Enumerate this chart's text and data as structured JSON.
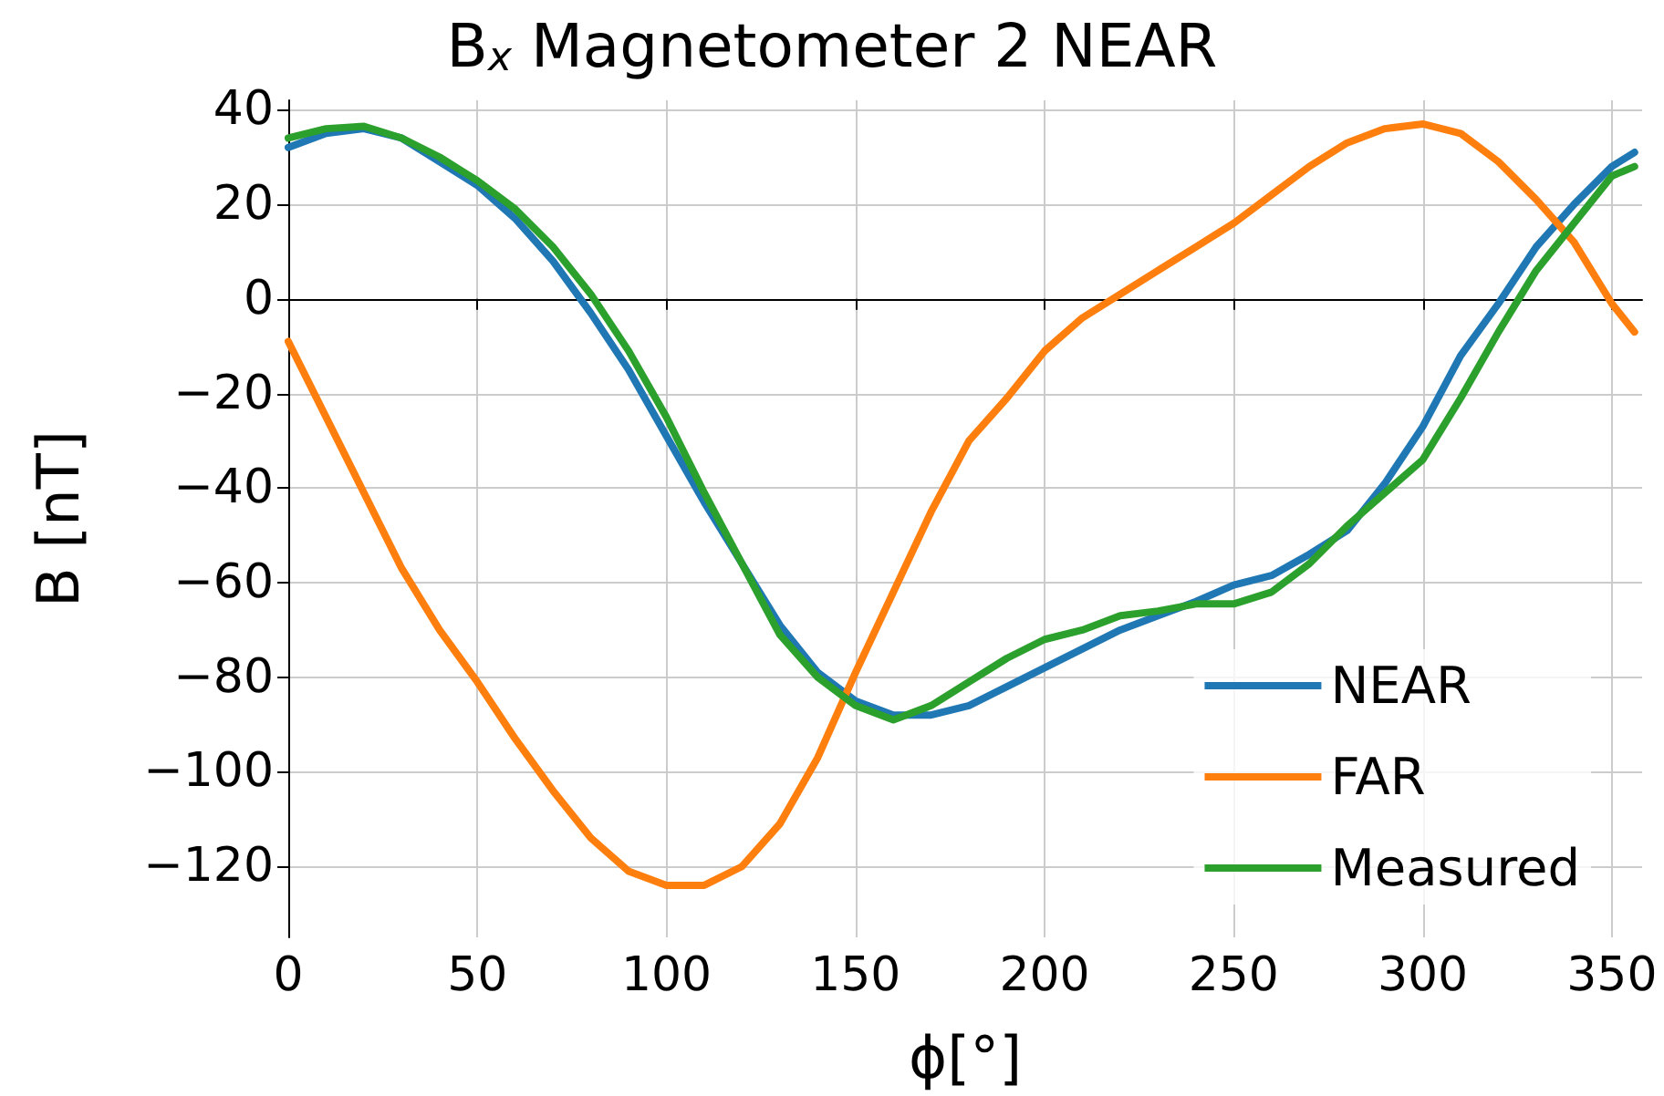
{
  "chart_data": {
    "type": "line",
    "title": "B$_{x}$ Magnetometer 2 NEAR",
    "xlabel": "ϕ[°]",
    "ylabel": "B [nT]",
    "xlim": [
      0,
      358
    ],
    "ylim": [
      -135,
      42
    ],
    "xticks": [
      0,
      50,
      100,
      150,
      200,
      250,
      300,
      350
    ],
    "yticks": [
      -120,
      -100,
      -80,
      -60,
      -40,
      -20,
      0,
      20,
      40
    ],
    "grid": true,
    "legend": "bottom right",
    "marker": "none",
    "line_style": "solid",
    "x": [
      0,
      10,
      20,
      30,
      40,
      50,
      60,
      70,
      80,
      90,
      100,
      110,
      120,
      130,
      140,
      150,
      160,
      170,
      180,
      190,
      200,
      210,
      220,
      230,
      240,
      250,
      260,
      270,
      280,
      290,
      300,
      310,
      320,
      330,
      340,
      350,
      356
    ],
    "series": [
      {
        "name": "NEAR",
        "color": "#1f77b4",
        "values": [
          32,
          35,
          36,
          34,
          29,
          24,
          17,
          8,
          -3,
          -15,
          -29,
          -43,
          -56,
          -69,
          -79,
          -85,
          -88,
          -88,
          -86,
          -82,
          -78,
          -74,
          -70,
          -67,
          -64,
          -60.5,
          -58.5,
          -54,
          -49,
          -39,
          -27,
          -12,
          -1,
          11,
          20,
          28,
          31
        ]
      },
      {
        "name": "FAR",
        "color": "#ff7f0e",
        "values": [
          -9,
          -25,
          -41,
          -57,
          -70,
          -81,
          -93,
          -104,
          -114,
          -121,
          -124,
          -124,
          -120,
          -111,
          -97,
          -79,
          -62,
          -45,
          -30,
          -21,
          -11,
          -4,
          1,
          6,
          11,
          16,
          22,
          28,
          33,
          36,
          37,
          35,
          29,
          21,
          12,
          -1,
          -7
        ]
      },
      {
        "name": "Measured",
        "color": "#2ca02c",
        "values": [
          34,
          36,
          36.5,
          34,
          30,
          25,
          19,
          11,
          1,
          -11,
          -25,
          -41,
          -56,
          -71,
          -80,
          -86,
          -89,
          -86,
          -81,
          -76,
          -72,
          -70,
          -67,
          -66,
          -64.5,
          -64.5,
          -62,
          -56,
          -48,
          -41,
          -34,
          -21,
          -7,
          6,
          16,
          26,
          28
        ]
      }
    ]
  }
}
